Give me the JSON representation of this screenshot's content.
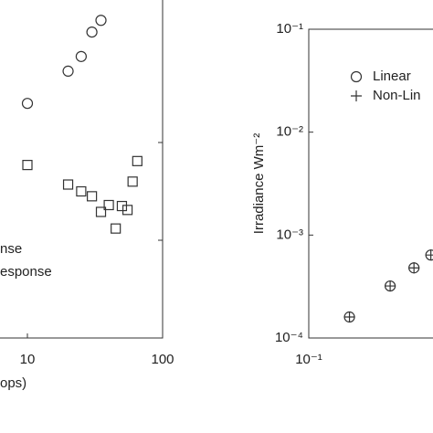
{
  "chart_data": [
    {
      "type": "scatter",
      "x_label": "ops)",
      "xscale": "log",
      "xlim": [
        1,
        100
      ],
      "xticks": [
        10,
        100
      ],
      "ylim": [
        0,
        3.5
      ],
      "yticks": [
        1,
        2
      ],
      "series": [
        {
          "name": "nse",
          "marker": "circle",
          "color": "#333333",
          "x": [
            10,
            20,
            25,
            30,
            35
          ],
          "values": [
            2.4,
            2.73,
            2.88,
            3.13,
            3.25
          ]
        },
        {
          "name": "esponse",
          "marker": "square",
          "color": "#333333",
          "x": [
            10,
            20,
            25,
            30,
            35,
            40,
            45,
            50,
            55,
            60,
            65
          ],
          "values": [
            1.77,
            1.57,
            1.5,
            1.45,
            1.29,
            1.36,
            1.12,
            1.35,
            1.31,
            1.6,
            1.81
          ]
        }
      ]
    },
    {
      "type": "scatter",
      "y_label": "Irradiance Wm⁻²",
      "xscale": "log",
      "yscale": "log",
      "xlim": [
        0.1,
        10
      ],
      "xticks": [
        {
          "value": 0.1,
          "label": "10⁻¹"
        }
      ],
      "ylim": [
        0.0001,
        0.1
      ],
      "yticks": [
        {
          "value": 0.0001,
          "label": "10⁻⁴"
        },
        {
          "value": 0.001,
          "label": "10⁻³"
        },
        {
          "value": 0.01,
          "label": "10⁻²"
        },
        {
          "value": 0.1,
          "label": "10⁻¹"
        }
      ],
      "series": [
        {
          "name": "Linear",
          "marker": "circle",
          "color": "#333333",
          "x": [
            0.2,
            0.4,
            0.6,
            0.8
          ],
          "values": [
            0.00016,
            0.00032,
            0.00048,
            0.00064
          ]
        },
        {
          "name": "Non-Lin",
          "marker": "plus",
          "color": "#333333",
          "x": [
            0.2,
            0.4,
            0.6,
            0.8
          ],
          "values": [
            0.00016,
            0.00032,
            0.00048,
            0.00064
          ]
        }
      ]
    }
  ]
}
